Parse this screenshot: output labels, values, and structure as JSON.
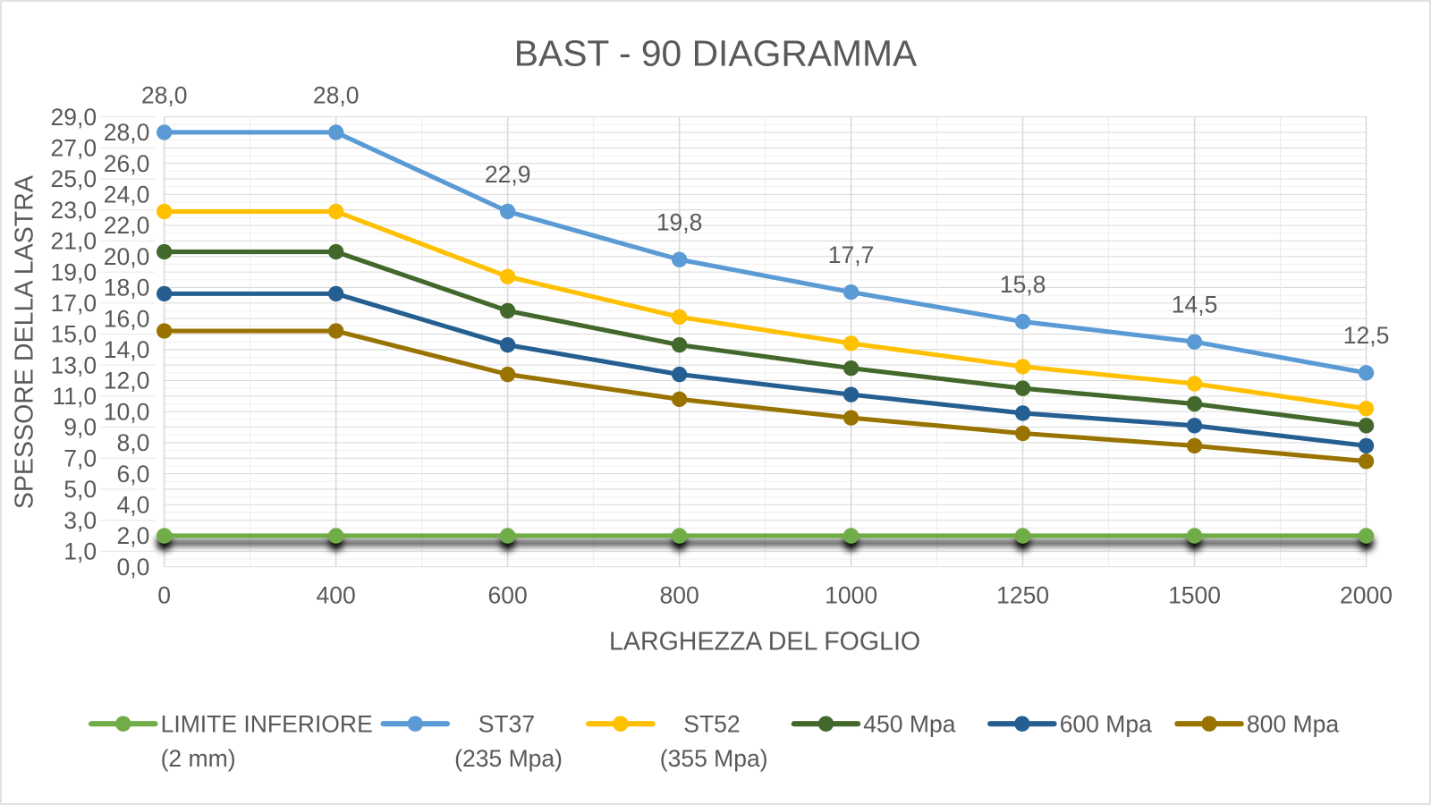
{
  "chart_data": {
    "type": "line",
    "title": "BAST - 90 DIAGRAMMA",
    "xlabel": "LARGHEZZA DEL FOGLIO",
    "ylabel": "SPESSORE DELLA LASTRA",
    "categories": [
      "0",
      "400",
      "600",
      "800",
      "1000",
      "1250",
      "1500",
      "2000"
    ],
    "ylim": [
      0,
      29
    ],
    "ytick_step": 1,
    "ytick_labels": [
      "0,0",
      "1,0",
      "2,0",
      "3,0",
      "4,0",
      "5,0",
      "6,0",
      "7,0",
      "8,0",
      "9,0",
      "10,0",
      "11,0",
      "12,0",
      "13,0",
      "14,0",
      "15,0",
      "16,0",
      "17,0",
      "18,0",
      "19,0",
      "20,0",
      "21,0",
      "22,0",
      "23,0",
      "24,0",
      "25,0",
      "26,0",
      "27,0",
      "28,0",
      "29,0"
    ],
    "grid": true,
    "legend_placement": "bottom",
    "series": [
      {
        "name": "LIMITE INFERIORE",
        "name_line2": "(2 mm)",
        "color": "#70AD47",
        "values": [
          2,
          2,
          2,
          2,
          2,
          2,
          2,
          2
        ],
        "shadow": true
      },
      {
        "name": "ST37",
        "name_line2": "(235 Mpa)",
        "color": "#5B9BD5",
        "values": [
          28.0,
          28.0,
          22.9,
          19.8,
          17.7,
          15.8,
          14.5,
          12.5
        ],
        "data_labels": [
          "28,0",
          "28,0",
          "22,9",
          "19,8",
          "17,7",
          "15,8",
          "14,5",
          "12,5"
        ]
      },
      {
        "name": "ST52",
        "name_line2": "(355 Mpa)",
        "color": "#FFC000",
        "values": [
          22.9,
          22.9,
          18.7,
          16.1,
          14.4,
          12.9,
          11.8,
          10.2
        ]
      },
      {
        "name": "450  Mpa",
        "color": "#43682B",
        "values": [
          20.3,
          20.3,
          16.5,
          14.3,
          12.8,
          11.5,
          10.5,
          9.1
        ]
      },
      {
        "name": "600 Mpa",
        "color": "#255E91",
        "values": [
          17.6,
          17.6,
          14.3,
          12.4,
          11.1,
          9.9,
          9.1,
          7.8
        ]
      },
      {
        "name": "800 Mpa",
        "color": "#997300",
        "values": [
          15.2,
          15.2,
          12.4,
          10.8,
          9.6,
          8.6,
          7.8,
          6.8
        ]
      }
    ]
  }
}
